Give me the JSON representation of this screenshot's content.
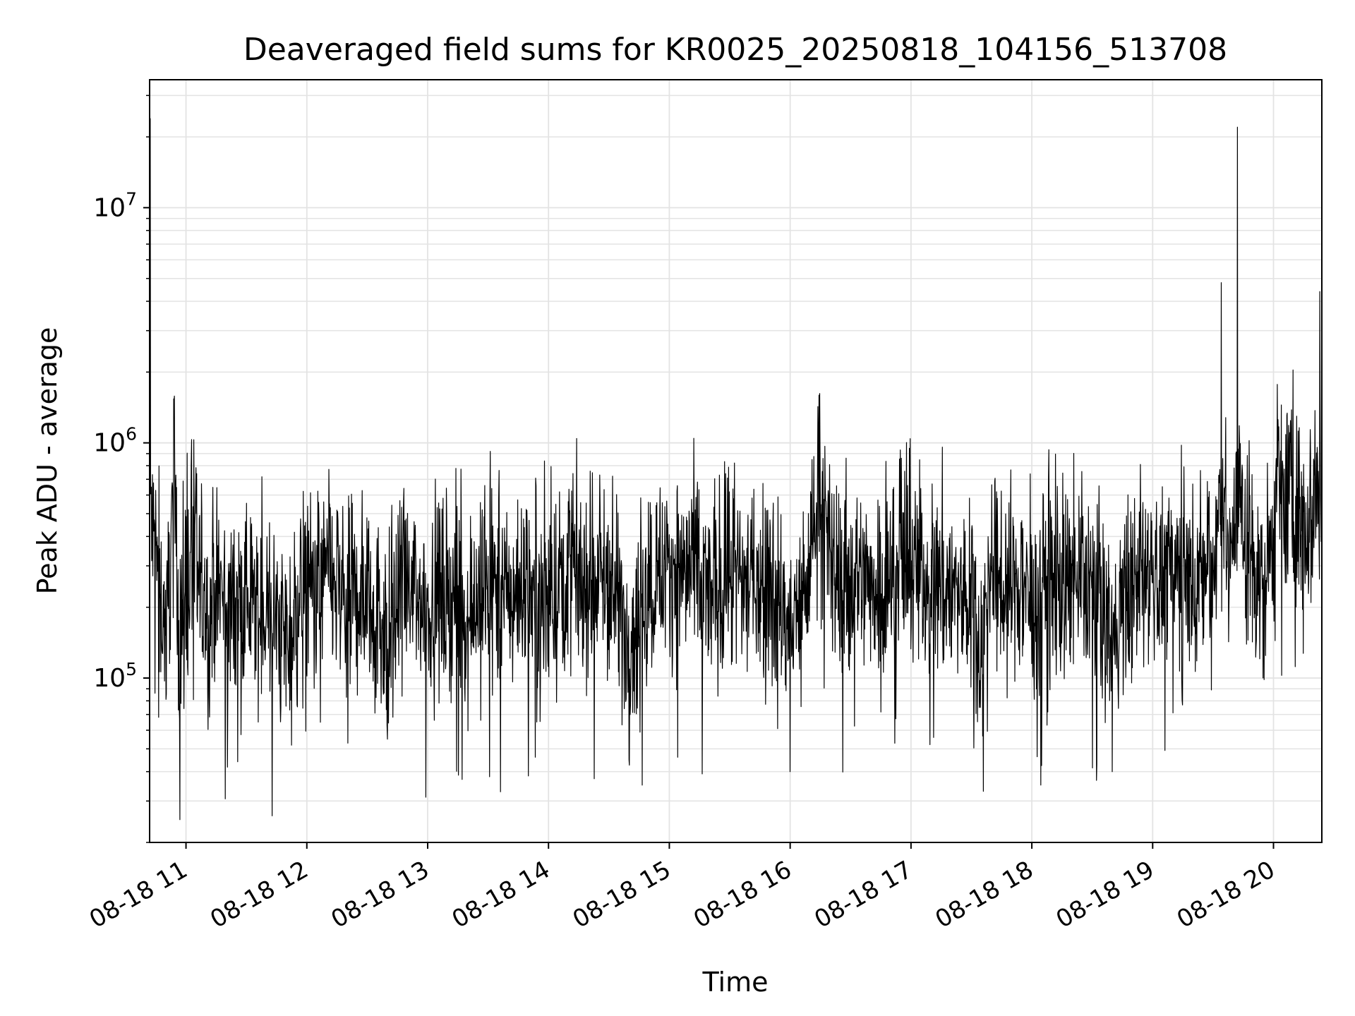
{
  "chart_data": {
    "type": "line",
    "title": "Deaveraged field sums for KR0025_20250818_104156_513708",
    "xlabel": "Time",
    "ylabel": "Peak ADU - average",
    "yscale": "log",
    "grid": true,
    "ylim": [
      20000,
      35000000
    ],
    "xlim": [
      "2025-08-18 10:41:56",
      "2025-08-18 20:24:00"
    ],
    "x_ticks": [
      {
        "value": "2025-08-18 11:00",
        "label": "08-18 11"
      },
      {
        "value": "2025-08-18 12:00",
        "label": "08-18 12"
      },
      {
        "value": "2025-08-18 13:00",
        "label": "08-18 13"
      },
      {
        "value": "2025-08-18 14:00",
        "label": "08-18 14"
      },
      {
        "value": "2025-08-18 15:00",
        "label": "08-18 15"
      },
      {
        "value": "2025-08-18 16:00",
        "label": "08-18 16"
      },
      {
        "value": "2025-08-18 17:00",
        "label": "08-18 17"
      },
      {
        "value": "2025-08-18 18:00",
        "label": "08-18 18"
      },
      {
        "value": "2025-08-18 19:00",
        "label": "08-18 19"
      },
      {
        "value": "2025-08-18 20:00",
        "label": "08-18 20"
      }
    ],
    "y_ticks": [
      {
        "value": 100000,
        "base": "10",
        "exp": "5"
      },
      {
        "value": 1000000,
        "base": "10",
        "exp": "6"
      },
      {
        "value": 10000000,
        "base": "10",
        "exp": "7"
      }
    ],
    "series": [
      {
        "color": "#000000",
        "x": [
          "2025-08-18 10:42",
          "2025-08-18 10:43",
          "2025-08-18 10:46",
          "2025-08-18 10:50",
          "2025-08-18 10:54",
          "2025-08-18 10:57",
          "2025-08-18 11:03",
          "2025-08-18 11:10",
          "2025-08-18 11:15",
          "2025-08-18 11:20",
          "2025-08-18 11:30",
          "2025-08-18 11:40",
          "2025-08-18 11:50",
          "2025-08-18 12:00",
          "2025-08-18 12:10",
          "2025-08-18 12:20",
          "2025-08-18 12:30",
          "2025-08-18 12:40",
          "2025-08-18 12:50",
          "2025-08-18 13:00",
          "2025-08-18 13:10",
          "2025-08-18 13:20",
          "2025-08-18 13:30",
          "2025-08-18 13:40",
          "2025-08-18 13:50",
          "2025-08-18 14:00",
          "2025-08-18 14:10",
          "2025-08-18 14:20",
          "2025-08-18 14:30",
          "2025-08-18 14:40",
          "2025-08-18 14:50",
          "2025-08-18 15:00",
          "2025-08-18 15:10",
          "2025-08-18 15:20",
          "2025-08-18 15:30",
          "2025-08-18 15:40",
          "2025-08-18 15:50",
          "2025-08-18 16:00",
          "2025-08-18 16:10",
          "2025-08-18 16:14",
          "2025-08-18 16:20",
          "2025-08-18 16:30",
          "2025-08-18 16:40",
          "2025-08-18 16:50",
          "2025-08-18 17:00",
          "2025-08-18 17:10",
          "2025-08-18 17:20",
          "2025-08-18 17:30",
          "2025-08-18 17:36",
          "2025-08-18 17:40",
          "2025-08-18 17:50",
          "2025-08-18 18:00",
          "2025-08-18 18:10",
          "2025-08-18 18:20",
          "2025-08-18 18:30",
          "2025-08-18 18:40",
          "2025-08-18 18:50",
          "2025-08-18 19:00",
          "2025-08-18 19:10",
          "2025-08-18 19:20",
          "2025-08-18 19:30",
          "2025-08-18 19:34",
          "2025-08-18 19:38",
          "2025-08-18 19:42",
          "2025-08-18 19:46",
          "2025-08-18 19:50",
          "2025-08-18 19:56",
          "2025-08-18 20:02",
          "2025-08-18 20:08",
          "2025-08-18 20:14",
          "2025-08-18 20:20",
          "2025-08-18 20:23"
        ],
        "y": [
          24000000,
          400000,
          300000,
          120000,
          1500000,
          25000,
          350000,
          180000,
          260000,
          200000,
          220000,
          180000,
          90000,
          230000,
          280000,
          200000,
          240000,
          55000,
          230000,
          210000,
          230000,
          200000,
          240000,
          220000,
          260000,
          210000,
          300000,
          240000,
          280000,
          45000,
          260000,
          300000,
          280000,
          220000,
          280000,
          250000,
          260000,
          40000,
          280000,
          1000000,
          280000,
          270000,
          260000,
          250000,
          290000,
          270000,
          240000,
          200000,
          33000,
          270000,
          250000,
          230000,
          260000,
          240000,
          250000,
          40000,
          250000,
          260000,
          300000,
          250000,
          300000,
          4800000,
          280000,
          22000000,
          350000,
          300000,
          230000,
          550000,
          600000,
          450000,
          550000,
          4400000
        ]
      }
    ]
  }
}
